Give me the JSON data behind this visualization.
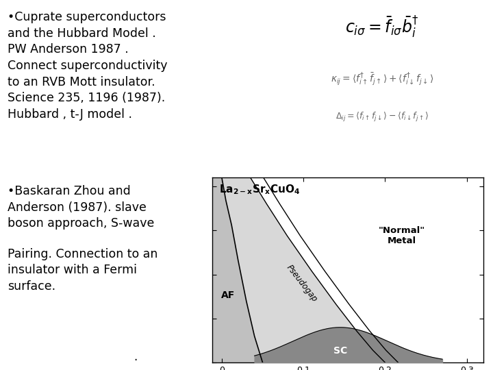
{
  "bg_color": "#ffffff",
  "text1": "•Cuprate superconductors\nand the Hubbard Model .\nPW Anderson 1987 .\nConnect superconductivity\nto an RVB Mott insulator.\nScience 235, 1196 (1987).\nHubbard , t-J model .",
  "text2": "•Baskaran Zhou and\nAnderson (1987). slave\nboson approach, S-wave",
  "text3": "Pairing. Connection to an\ninsulator with a Fermi\nsurface.",
  "af_color": "#c0c0c0",
  "sc_color": "#888888",
  "pg_color": "#d8d8d8",
  "white_color": "#ffffff",
  "text_fontsize": 12.5,
  "phase_title": "La$_{2-x}$Sr$_x$CuO$_4$",
  "normal_metal_label": "\"Normal\"\nMetal",
  "af_label": "AF",
  "sc_label": "SC",
  "pseudogap_label": "Pseudogap"
}
